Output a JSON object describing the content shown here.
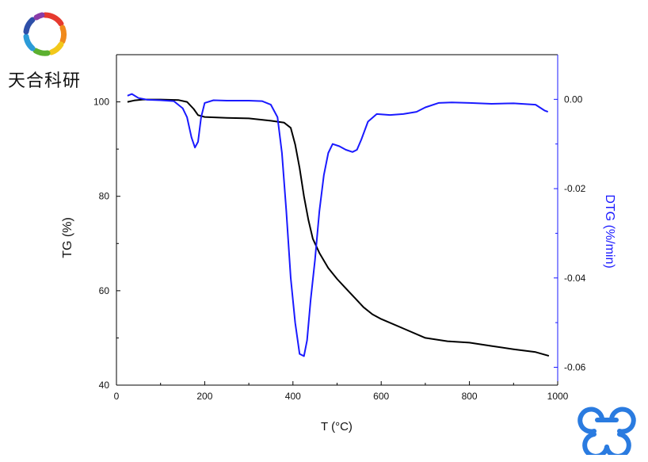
{
  "brand": {
    "name": "天合科研"
  },
  "chart_data": {
    "type": "line",
    "title": "",
    "xlabel": "T (°C)",
    "ylabel_left": "TG (%)",
    "ylabel_right": "DTG (%/min)",
    "xlim": [
      0,
      1000
    ],
    "ylim_left": [
      40,
      110
    ],
    "ylim_right": [
      -0.064,
      0.01
    ],
    "x_ticks": [
      0,
      200,
      400,
      600,
      800,
      1000
    ],
    "y_ticks_left": [
      40,
      60,
      80,
      100
    ],
    "y_ticks_right": [
      0.0,
      -0.02,
      -0.04,
      -0.06
    ],
    "x_tick_labels": [
      "0",
      "200",
      "400",
      "600",
      "800",
      "1000"
    ],
    "y_tick_labels_left": [
      "40",
      "60",
      "80",
      "100"
    ],
    "y_tick_labels_right": [
      "0.00",
      "-0.02",
      "-0.04",
      "-0.06"
    ],
    "grid": false,
    "colors": {
      "tg": "#000000",
      "dtg": "#1a1aff"
    },
    "series": [
      {
        "axis": "left",
        "color": "#000000",
        "points": [
          [
            25,
            100
          ],
          [
            40,
            100.3
          ],
          [
            60,
            100.5
          ],
          [
            100,
            100.5
          ],
          [
            140,
            100.4
          ],
          [
            160,
            100
          ],
          [
            175,
            98.5
          ],
          [
            185,
            97.2
          ],
          [
            200,
            96.8
          ],
          [
            250,
            96.6
          ],
          [
            300,
            96.5
          ],
          [
            350,
            96.0
          ],
          [
            380,
            95.6
          ],
          [
            395,
            94.5
          ],
          [
            405,
            91
          ],
          [
            415,
            86
          ],
          [
            425,
            80
          ],
          [
            435,
            75
          ],
          [
            445,
            71
          ],
          [
            460,
            68
          ],
          [
            480,
            64.8
          ],
          [
            500,
            62.5
          ],
          [
            520,
            60.5
          ],
          [
            540,
            58.5
          ],
          [
            560,
            56.5
          ],
          [
            580,
            55
          ],
          [
            600,
            54
          ],
          [
            650,
            52
          ],
          [
            700,
            50
          ],
          [
            750,
            49.3
          ],
          [
            800,
            49
          ],
          [
            850,
            48.3
          ],
          [
            900,
            47.6
          ],
          [
            950,
            47
          ],
          [
            980,
            46.2
          ]
        ]
      },
      {
        "axis": "right",
        "color": "#1a1aff",
        "points": [
          [
            25,
            0.0008
          ],
          [
            35,
            0.0012
          ],
          [
            50,
            0.0003
          ],
          [
            70,
            -0.0001
          ],
          [
            100,
            -0.0002
          ],
          [
            130,
            -0.0004
          ],
          [
            150,
            -0.002
          ],
          [
            160,
            -0.004
          ],
          [
            170,
            -0.0085
          ],
          [
            178,
            -0.0108
          ],
          [
            185,
            -0.0095
          ],
          [
            192,
            -0.004
          ],
          [
            200,
            -0.0008
          ],
          [
            220,
            -0.0002
          ],
          [
            250,
            -0.0003
          ],
          [
            300,
            -0.0003
          ],
          [
            330,
            -0.0004
          ],
          [
            350,
            -0.0012
          ],
          [
            365,
            -0.004
          ],
          [
            375,
            -0.012
          ],
          [
            385,
            -0.025
          ],
          [
            395,
            -0.04
          ],
          [
            405,
            -0.05
          ],
          [
            415,
            -0.057
          ],
          [
            425,
            -0.0575
          ],
          [
            432,
            -0.054
          ],
          [
            440,
            -0.045
          ],
          [
            450,
            -0.036
          ],
          [
            460,
            -0.025
          ],
          [
            470,
            -0.017
          ],
          [
            480,
            -0.012
          ],
          [
            490,
            -0.01
          ],
          [
            505,
            -0.0105
          ],
          [
            520,
            -0.0113
          ],
          [
            535,
            -0.0118
          ],
          [
            545,
            -0.0113
          ],
          [
            555,
            -0.009
          ],
          [
            570,
            -0.005
          ],
          [
            590,
            -0.0033
          ],
          [
            620,
            -0.0035
          ],
          [
            650,
            -0.0033
          ],
          [
            680,
            -0.0028
          ],
          [
            700,
            -0.0018
          ],
          [
            730,
            -0.0008
          ],
          [
            760,
            -0.0007
          ],
          [
            800,
            -0.0008
          ],
          [
            850,
            -0.001
          ],
          [
            900,
            -0.0009
          ],
          [
            950,
            -0.0012
          ],
          [
            970,
            -0.0025
          ],
          [
            978,
            -0.0028
          ]
        ]
      }
    ]
  }
}
